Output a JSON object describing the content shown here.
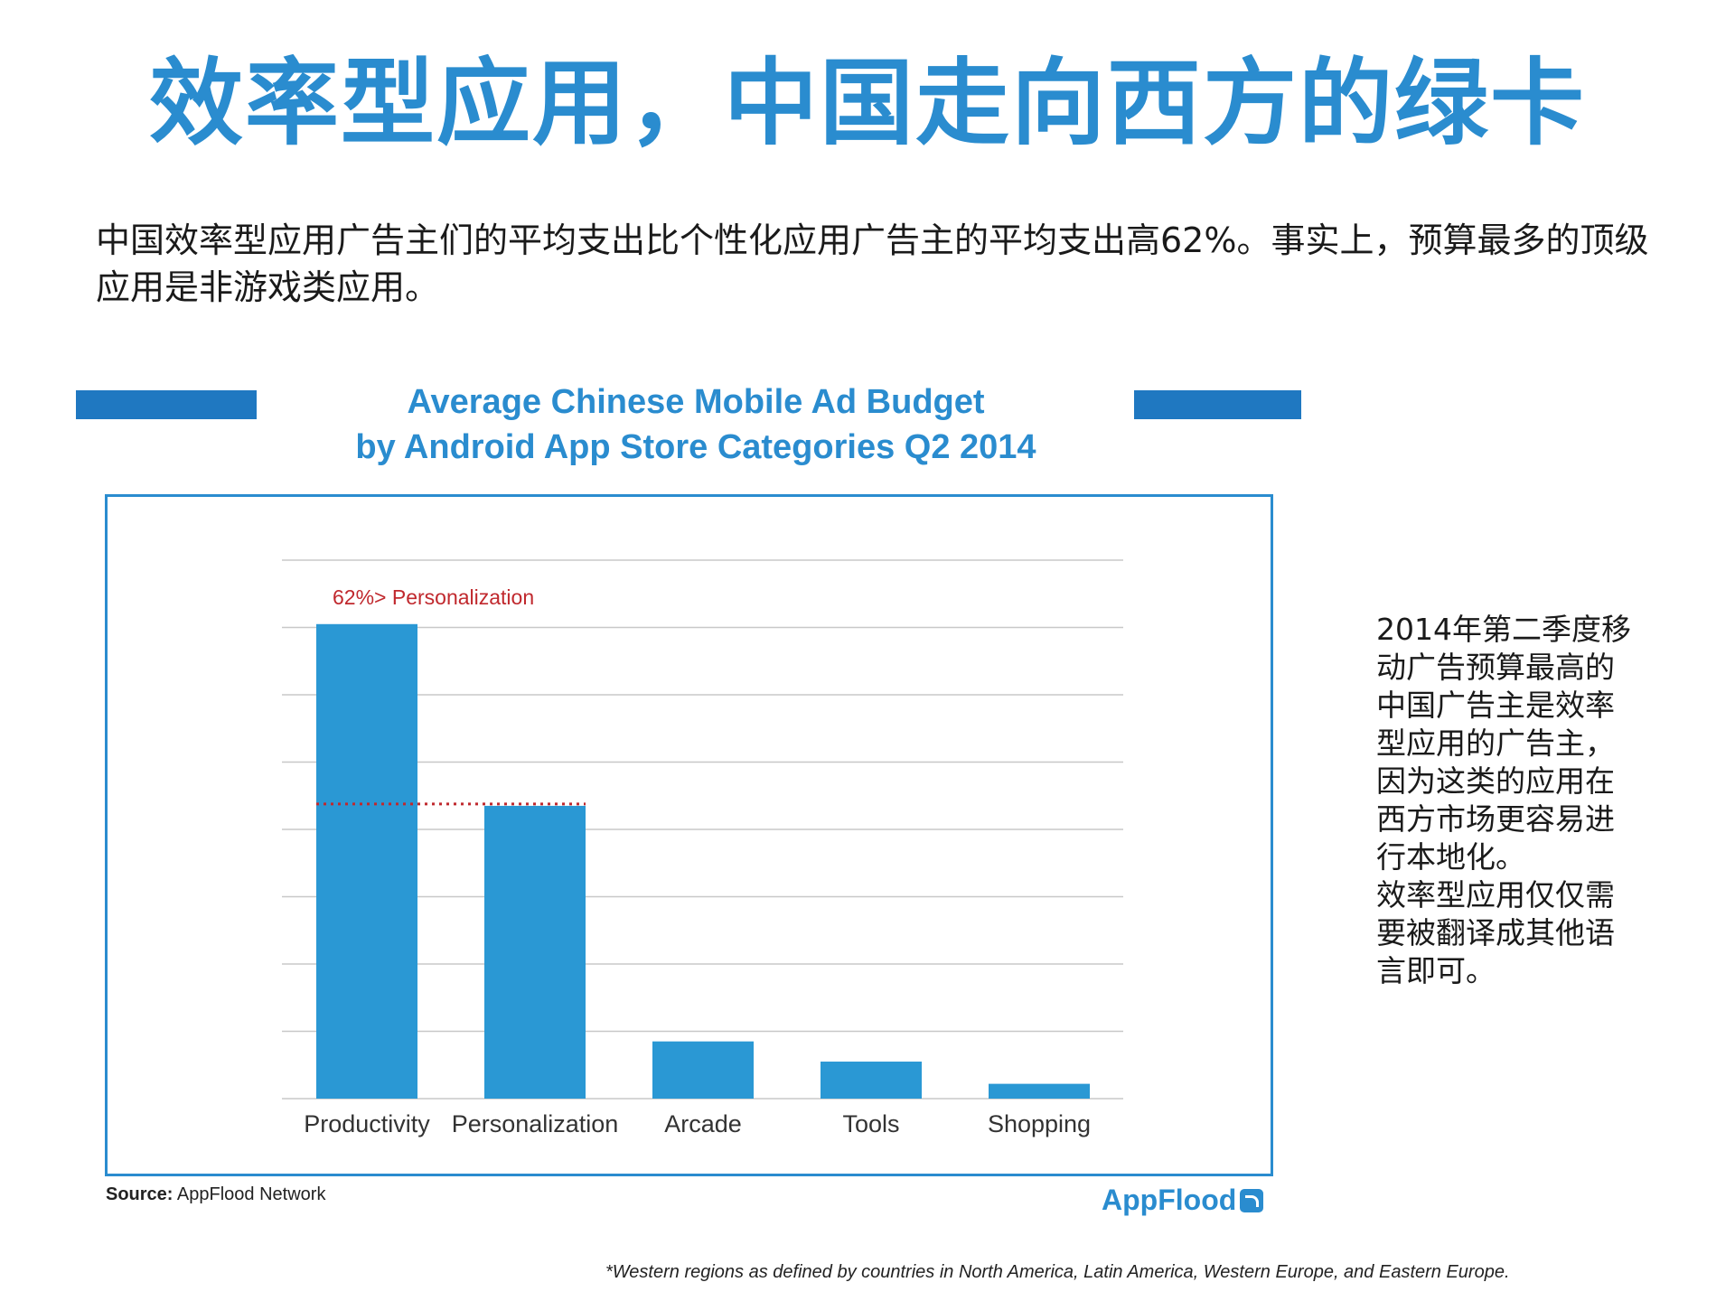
{
  "headline": "效率型应用，中国走向西方的绿卡",
  "intro": "中国效率型应用广告主们的平均支出比个性化应用广告主的平均支出高62%。事实上，预算最多的顶级应用是非游戏类应用。",
  "chart_data": {
    "type": "bar",
    "title_line1": "Average Chinese Mobile Ad Budget",
    "title_line2": "by Android App Store Categories Q2 2014",
    "categories": [
      "Productivity",
      "Personalization",
      "Arcade",
      "Tools",
      "Shopping"
    ],
    "values": [
      7.05,
      4.35,
      0.85,
      0.55,
      0.22
    ],
    "ylim": [
      0,
      8
    ],
    "grid": true,
    "annotation": "62%> Personalization",
    "annotation_color": "#c0282d",
    "bar_color": "#2a98d4"
  },
  "side_note": {
    "lines": [
      "2014年第二季度移",
      "动广告预算最高的",
      "中国广告主是效率",
      "型应用的广告主，",
      "因为这类的应用在",
      "西方市场更容易进",
      "行本地化。",
      "效率型应用仅仅需",
      "要被翻译成其他语",
      "言即可。"
    ]
  },
  "source_label": "Source:",
  "source_text": "AppFlood Network",
  "brand": "AppFlood",
  "footnote": "*Western regions as defined by countries in North America, Latin America, Western Europe, and Eastern Europe.",
  "colors": {
    "accent": "#2a8ccf",
    "accent_dark": "#1f78c1"
  }
}
